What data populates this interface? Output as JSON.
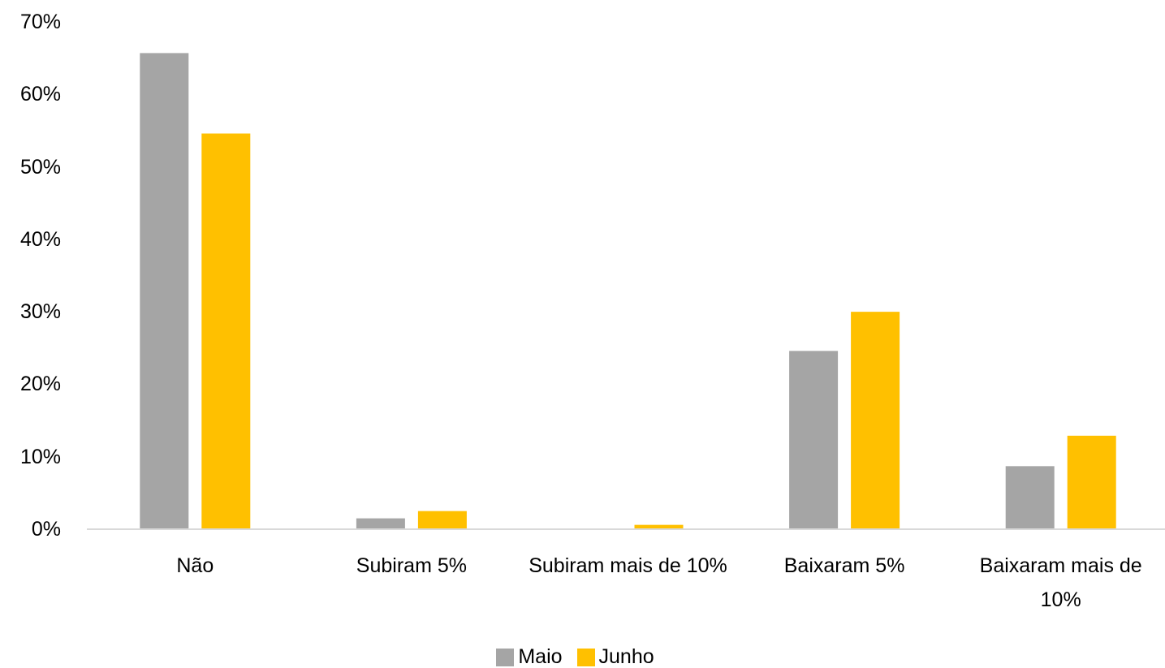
{
  "chart_data": {
    "type": "bar",
    "categories": [
      "Não",
      "Subiram 5%",
      "Subiram mais de 10%",
      "Baixaram 5%",
      "Baixaram mais de 10%"
    ],
    "series": [
      {
        "name": "Maio",
        "color": "#a5a5a5",
        "values": [
          65.7,
          1.5,
          0,
          24.6,
          8.7
        ]
      },
      {
        "name": "Junho",
        "color": "#ffc000",
        "values": [
          54.6,
          2.5,
          0.6,
          30.0,
          12.9
        ]
      }
    ],
    "ylim": [
      0,
      70
    ],
    "yticks": [
      {
        "value": 0,
        "label": "0%"
      },
      {
        "value": 10,
        "label": "10%"
      },
      {
        "value": 20,
        "label": "20%"
      },
      {
        "value": 30,
        "label": "30%"
      },
      {
        "value": 40,
        "label": "40%"
      },
      {
        "value": 50,
        "label": "50%"
      },
      {
        "value": 60,
        "label": "60%"
      },
      {
        "value": 70,
        "label": "70%"
      }
    ],
    "grid": false,
    "legend": "bottom"
  }
}
